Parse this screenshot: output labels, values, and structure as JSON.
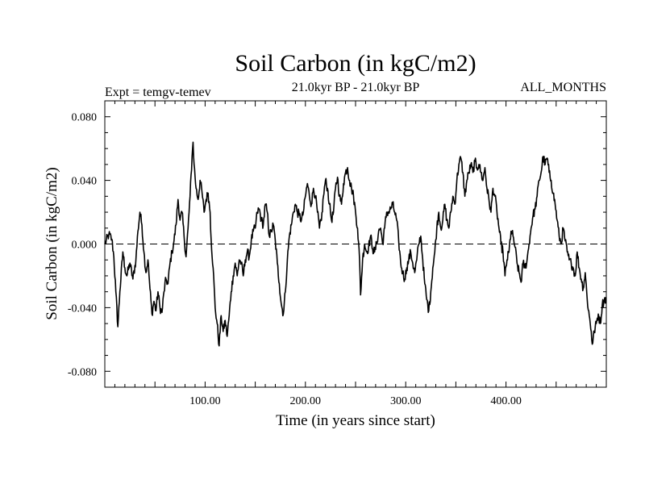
{
  "chart_data": {
    "type": "line",
    "title": "Soil Carbon (in kgC/m2)",
    "subtitle_left": "Expt = temgv-temev",
    "subtitle_center": "21.0kyr BP - 21.0kyr BP",
    "subtitle_right": "ALL_MONTHS",
    "xlabel": "Time (in years since start)",
    "ylabel": "Soil Carbon (in kgC/m2)",
    "xlim": [
      0,
      500
    ],
    "ylim": [
      -0.09,
      0.09
    ],
    "xticks": [
      100,
      200,
      300,
      400
    ],
    "xtick_labels": [
      "100.00",
      "200.00",
      "300.00",
      "400.00"
    ],
    "yticks": [
      0.08,
      0.04,
      0.0,
      -0.04,
      -0.08
    ],
    "ytick_labels": [
      "0.080",
      "0.040",
      "0.000",
      "-0.040",
      "-0.080"
    ],
    "reference_line": 0.0,
    "grid": false,
    "series": [
      {
        "name": "temgv-temev",
        "color": "#000000",
        "keypoints": [
          [
            0,
            0.0
          ],
          [
            4,
            0.006
          ],
          [
            7,
            0.003
          ],
          [
            9,
            -0.008
          ],
          [
            11,
            -0.03
          ],
          [
            13,
            -0.052
          ],
          [
            15,
            -0.03
          ],
          [
            18,
            -0.005
          ],
          [
            20,
            -0.015
          ],
          [
            22,
            -0.02
          ],
          [
            25,
            -0.012
          ],
          [
            28,
            -0.022
          ],
          [
            31,
            -0.01
          ],
          [
            33,
            0.008
          ],
          [
            35,
            0.02
          ],
          [
            37,
            0.012
          ],
          [
            39,
            -0.005
          ],
          [
            41,
            -0.018
          ],
          [
            43,
            -0.01
          ],
          [
            45,
            -0.028
          ],
          [
            47,
            -0.044
          ],
          [
            49,
            -0.036
          ],
          [
            51,
            -0.042
          ],
          [
            53,
            -0.03
          ],
          [
            55,
            -0.04
          ],
          [
            57,
            -0.043
          ],
          [
            59,
            -0.03
          ],
          [
            61,
            -0.022
          ],
          [
            63,
            -0.025
          ],
          [
            65,
            -0.012
          ],
          [
            67,
            -0.005
          ],
          [
            69,
            0.002
          ],
          [
            71,
            0.012
          ],
          [
            73,
            0.028
          ],
          [
            75,
            0.015
          ],
          [
            77,
            0.02
          ],
          [
            79,
            0.005
          ],
          [
            81,
            -0.008
          ],
          [
            83,
            0.01
          ],
          [
            85,
            0.03
          ],
          [
            87,
            0.055
          ],
          [
            88,
            0.064
          ],
          [
            89,
            0.05
          ],
          [
            91,
            0.035
          ],
          [
            93,
            0.028
          ],
          [
            95,
            0.04
          ],
          [
            97,
            0.032
          ],
          [
            99,
            0.02
          ],
          [
            101,
            0.028
          ],
          [
            103,
            0.032
          ],
          [
            105,
            0.02
          ],
          [
            106,
            0.003
          ],
          [
            108,
            -0.015
          ],
          [
            110,
            -0.04
          ],
          [
            112,
            -0.05
          ],
          [
            114,
            -0.064
          ],
          [
            116,
            -0.045
          ],
          [
            118,
            -0.055
          ],
          [
            120,
            -0.048
          ],
          [
            122,
            -0.058
          ],
          [
            124,
            -0.045
          ],
          [
            126,
            -0.03
          ],
          [
            128,
            -0.02
          ],
          [
            130,
            -0.012
          ],
          [
            132,
            -0.02
          ],
          [
            134,
            -0.01
          ],
          [
            136,
            -0.012
          ],
          [
            138,
            -0.02
          ],
          [
            140,
            -0.01
          ],
          [
            142,
            -0.005
          ],
          [
            144,
            -0.008
          ],
          [
            146,
            0.002
          ],
          [
            148,
            0.008
          ],
          [
            150,
            0.01
          ],
          [
            152,
            0.02
          ],
          [
            154,
            0.022
          ],
          [
            156,
            0.015
          ],
          [
            158,
            0.012
          ],
          [
            160,
            0.025
          ],
          [
            162,
            0.02
          ],
          [
            164,
            0.005
          ],
          [
            166,
            0.008
          ],
          [
            168,
            0.012
          ],
          [
            170,
            0.002
          ],
          [
            172,
            -0.012
          ],
          [
            174,
            -0.025
          ],
          [
            176,
            -0.038
          ],
          [
            178,
            -0.044
          ],
          [
            180,
            -0.03
          ],
          [
            182,
            -0.01
          ],
          [
            184,
            0.005
          ],
          [
            186,
            0.012
          ],
          [
            188,
            0.02
          ],
          [
            190,
            0.025
          ],
          [
            192,
            0.02
          ],
          [
            194,
            0.018
          ],
          [
            196,
            0.015
          ],
          [
            198,
            0.02
          ],
          [
            200,
            0.03
          ],
          [
            202,
            0.038
          ],
          [
            204,
            0.03
          ],
          [
            206,
            0.025
          ],
          [
            208,
            0.035
          ],
          [
            210,
            0.03
          ],
          [
            212,
            0.02
          ],
          [
            214,
            0.01
          ],
          [
            216,
            0.015
          ],
          [
            218,
            0.03
          ],
          [
            220,
            0.04
          ],
          [
            222,
            0.035
          ],
          [
            224,
            0.025
          ],
          [
            226,
            0.015
          ],
          [
            228,
            0.02
          ],
          [
            230,
            0.035
          ],
          [
            232,
            0.042
          ],
          [
            234,
            0.03
          ],
          [
            236,
            0.025
          ],
          [
            238,
            0.038
          ],
          [
            240,
            0.045
          ],
          [
            242,
            0.048
          ],
          [
            244,
            0.04
          ],
          [
            246,
            0.035
          ],
          [
            248,
            0.03
          ],
          [
            250,
            0.02
          ],
          [
            252,
            0.01
          ],
          [
            254,
            -0.01
          ],
          [
            255,
            -0.032
          ],
          [
            257,
            -0.01
          ],
          [
            259,
            0.0
          ],
          [
            261,
            -0.005
          ],
          [
            263,
            -0.002
          ],
          [
            265,
            0.005
          ],
          [
            267,
            -0.003
          ],
          [
            269,
            -0.005
          ],
          [
            271,
            0.0
          ],
          [
            273,
            0.008
          ],
          [
            275,
            0.01
          ],
          [
            277,
            0.0
          ],
          [
            279,
            0.01
          ],
          [
            281,
            0.02
          ],
          [
            283,
            0.02
          ],
          [
            285,
            0.022
          ],
          [
            287,
            0.025
          ],
          [
            289,
            0.02
          ],
          [
            291,
            0.015
          ],
          [
            293,
            0.002
          ],
          [
            295,
            -0.012
          ],
          [
            297,
            -0.018
          ],
          [
            299,
            -0.022
          ],
          [
            301,
            -0.015
          ],
          [
            303,
            -0.01
          ],
          [
            305,
            -0.005
          ],
          [
            307,
            -0.012
          ],
          [
            309,
            -0.018
          ],
          [
            311,
            -0.01
          ],
          [
            313,
            0.0
          ],
          [
            315,
            0.005
          ],
          [
            317,
            -0.01
          ],
          [
            319,
            -0.025
          ],
          [
            321,
            -0.035
          ],
          [
            323,
            -0.042
          ],
          [
            325,
            -0.03
          ],
          [
            327,
            -0.015
          ],
          [
            329,
            -0.005
          ],
          [
            331,
            0.01
          ],
          [
            333,
            0.02
          ],
          [
            335,
            0.01
          ],
          [
            337,
            0.015
          ],
          [
            339,
            0.025
          ],
          [
            341,
            0.015
          ],
          [
            343,
            0.01
          ],
          [
            345,
            0.02
          ],
          [
            347,
            0.03
          ],
          [
            349,
            0.025
          ],
          [
            351,
            0.04
          ],
          [
            353,
            0.05
          ],
          [
            355,
            0.054
          ],
          [
            357,
            0.045
          ],
          [
            359,
            0.03
          ],
          [
            361,
            0.04
          ],
          [
            363,
            0.045
          ],
          [
            365,
            0.05
          ],
          [
            367,
            0.045
          ],
          [
            369,
            0.052
          ],
          [
            371,
            0.048
          ],
          [
            373,
            0.05
          ],
          [
            375,
            0.045
          ],
          [
            377,
            0.04
          ],
          [
            379,
            0.048
          ],
          [
            381,
            0.035
          ],
          [
            383,
            0.028
          ],
          [
            385,
            0.02
          ],
          [
            387,
            0.035
          ],
          [
            389,
            0.03
          ],
          [
            391,
            0.02
          ],
          [
            393,
            0.01
          ],
          [
            395,
            0.0
          ],
          [
            397,
            -0.005
          ],
          [
            399,
            -0.02
          ],
          [
            401,
            -0.01
          ],
          [
            403,
            -0.005
          ],
          [
            405,
            0.008
          ],
          [
            407,
            0.005
          ],
          [
            409,
            -0.002
          ],
          [
            411,
            -0.012
          ],
          [
            413,
            -0.018
          ],
          [
            415,
            -0.024
          ],
          [
            417,
            -0.012
          ],
          [
            419,
            -0.015
          ],
          [
            421,
            -0.01
          ],
          [
            423,
            0.0
          ],
          [
            425,
            0.01
          ],
          [
            427,
            0.018
          ],
          [
            429,
            0.022
          ],
          [
            431,
            0.03
          ],
          [
            433,
            0.04
          ],
          [
            435,
            0.045
          ],
          [
            437,
            0.055
          ],
          [
            439,
            0.05
          ],
          [
            441,
            0.054
          ],
          [
            443,
            0.045
          ],
          [
            445,
            0.04
          ],
          [
            447,
            0.032
          ],
          [
            449,
            0.025
          ],
          [
            451,
            0.015
          ],
          [
            453,
            0.005
          ],
          [
            455,
            0.0
          ],
          [
            457,
            0.01
          ],
          [
            459,
            0.002
          ],
          [
            461,
            -0.005
          ],
          [
            463,
            -0.01
          ],
          [
            465,
            -0.012
          ],
          [
            467,
            -0.015
          ],
          [
            469,
            -0.02
          ],
          [
            471,
            -0.005
          ],
          [
            473,
            -0.015
          ],
          [
            475,
            -0.022
          ],
          [
            477,
            -0.028
          ],
          [
            479,
            -0.018
          ],
          [
            481,
            -0.035
          ],
          [
            483,
            -0.045
          ],
          [
            485,
            -0.055
          ],
          [
            486,
            -0.063
          ],
          [
            488,
            -0.055
          ],
          [
            490,
            -0.05
          ],
          [
            492,
            -0.044
          ],
          [
            494,
            -0.05
          ],
          [
            496,
            -0.038
          ],
          [
            498,
            -0.035
          ],
          [
            500,
            -0.034
          ]
        ]
      }
    ]
  }
}
